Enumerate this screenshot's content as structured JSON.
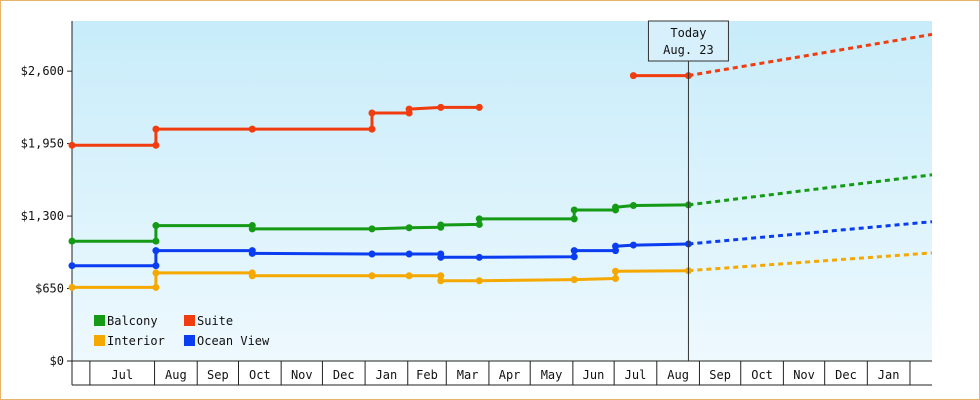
{
  "chart_data": {
    "type": "line",
    "y_ticks": [
      {
        "value": 0,
        "label": "$0"
      },
      {
        "value": 650,
        "label": "$650"
      },
      {
        "value": 1300,
        "label": "$1,300"
      },
      {
        "value": 1950,
        "label": "$1,950"
      },
      {
        "value": 2600,
        "label": "$2,600"
      }
    ],
    "ylim": [
      0,
      3050
    ],
    "xlim": [
      "2022-06-01",
      "2024-02-16"
    ],
    "month_labels": [
      {
        "label": "Jul",
        "start": "2022-06-14",
        "end": "2022-07-31"
      },
      {
        "label": "Aug",
        "start": "2022-07-31",
        "end": "2022-08-31"
      },
      {
        "label": "Sep",
        "start": "2022-08-31",
        "end": "2022-09-30"
      },
      {
        "label": "Oct",
        "start": "2022-09-30",
        "end": "2022-10-31"
      },
      {
        "label": "Nov",
        "start": "2022-10-31",
        "end": "2022-11-30"
      },
      {
        "label": "Dec",
        "start": "2022-11-30",
        "end": "2022-12-31"
      },
      {
        "label": "Jan",
        "start": "2022-12-31",
        "end": "2023-01-31"
      },
      {
        "label": "Feb",
        "start": "2023-01-31",
        "end": "2023-02-28"
      },
      {
        "label": "Mar",
        "start": "2023-02-28",
        "end": "2023-03-31"
      },
      {
        "label": "Apr",
        "start": "2023-03-31",
        "end": "2023-04-30"
      },
      {
        "label": "May",
        "start": "2023-04-30",
        "end": "2023-05-31"
      },
      {
        "label": "Jun",
        "start": "2023-05-31",
        "end": "2023-06-30"
      },
      {
        "label": "Jul",
        "start": "2023-06-30",
        "end": "2023-07-31"
      },
      {
        "label": "Aug",
        "start": "2023-07-31",
        "end": "2023-08-31"
      },
      {
        "label": "Sep",
        "start": "2023-08-31",
        "end": "2023-09-30"
      },
      {
        "label": "Oct",
        "start": "2023-09-30",
        "end": "2023-10-31"
      },
      {
        "label": "Nov",
        "start": "2023-10-31",
        "end": "2023-11-30"
      },
      {
        "label": "Dec",
        "start": "2023-11-30",
        "end": "2023-12-31"
      },
      {
        "label": "Jan",
        "start": "2023-12-31",
        "end": "2024-01-31"
      }
    ],
    "today": {
      "date": "2023-08-23",
      "label_line1": "Today",
      "label_line2": "Aug. 23"
    },
    "legend_placement": "bottom-left",
    "grid": false,
    "series": [
      {
        "name": "Balcony",
        "color": "#159a15",
        "points": [
          [
            "2022-06-01",
            1075
          ],
          [
            "2022-08-01",
            1075
          ],
          [
            "2022-08-01",
            1215
          ],
          [
            "2022-10-10",
            1215
          ],
          [
            "2022-10-10",
            1185
          ],
          [
            "2023-01-05",
            1185
          ],
          [
            "2023-02-01",
            1195
          ],
          [
            "2023-02-24",
            1200
          ],
          [
            "2023-02-24",
            1220
          ],
          [
            "2023-03-24",
            1225
          ],
          [
            "2023-03-24",
            1275
          ],
          [
            "2023-06-01",
            1275
          ],
          [
            "2023-06-01",
            1355
          ],
          [
            "2023-07-01",
            1355
          ],
          [
            "2023-07-01",
            1380
          ],
          [
            "2023-07-14",
            1395
          ],
          [
            "2023-08-23",
            1400
          ]
        ],
        "forecast": [
          [
            "2023-08-23",
            1400
          ],
          [
            "2024-02-16",
            1670
          ]
        ]
      },
      {
        "name": "Suite",
        "color": "#f03c0f",
        "points": [
          [
            "2022-06-01",
            1935
          ],
          [
            "2022-08-01",
            1935
          ],
          [
            "2022-08-01",
            2080
          ],
          [
            "2022-10-10",
            2080
          ],
          [
            "2023-01-05",
            2080
          ],
          [
            "2023-01-05",
            2225
          ],
          [
            "2023-02-01",
            2225
          ],
          [
            "2023-02-01",
            2260
          ],
          [
            "2023-02-24",
            2275
          ],
          [
            "2023-03-24",
            2275
          ]
        ],
        "forecast_points": [
          [
            "2023-07-14",
            2560
          ],
          [
            "2023-08-23",
            2560
          ]
        ],
        "forecast": [
          [
            "2023-08-23",
            2560
          ],
          [
            "2024-02-16",
            2930
          ]
        ]
      },
      {
        "name": "Interior",
        "color": "#f5a800",
        "points": [
          [
            "2022-06-01",
            660
          ],
          [
            "2022-08-01",
            660
          ],
          [
            "2022-08-01",
            790
          ],
          [
            "2022-10-10",
            790
          ],
          [
            "2022-10-10",
            765
          ],
          [
            "2023-01-05",
            765
          ],
          [
            "2023-02-01",
            765
          ],
          [
            "2023-02-24",
            765
          ],
          [
            "2023-02-24",
            720
          ],
          [
            "2023-03-24",
            720
          ],
          [
            "2023-06-01",
            730
          ],
          [
            "2023-07-01",
            740
          ],
          [
            "2023-07-01",
            805
          ],
          [
            "2023-08-23",
            810
          ]
        ],
        "forecast": [
          [
            "2023-08-23",
            810
          ],
          [
            "2024-02-16",
            970
          ]
        ]
      },
      {
        "name": "Ocean View",
        "color": "#0a3cf0",
        "points": [
          [
            "2022-06-01",
            855
          ],
          [
            "2022-08-01",
            855
          ],
          [
            "2022-08-01",
            990
          ],
          [
            "2022-10-10",
            990
          ],
          [
            "2022-10-10",
            965
          ],
          [
            "2023-01-05",
            960
          ],
          [
            "2023-02-01",
            960
          ],
          [
            "2023-02-24",
            960
          ],
          [
            "2023-02-24",
            930
          ],
          [
            "2023-03-24",
            930
          ],
          [
            "2023-06-01",
            935
          ],
          [
            "2023-06-01",
            990
          ],
          [
            "2023-07-01",
            990
          ],
          [
            "2023-07-01",
            1030
          ],
          [
            "2023-07-14",
            1040
          ],
          [
            "2023-08-23",
            1050
          ]
        ],
        "forecast": [
          [
            "2023-08-23",
            1050
          ],
          [
            "2024-02-16",
            1250
          ]
        ]
      }
    ],
    "legend": [
      {
        "name": "Balcony",
        "color": "#159a15"
      },
      {
        "name": "Suite",
        "color": "#f03c0f"
      },
      {
        "name": "Interior",
        "color": "#f5a800"
      },
      {
        "name": "Ocean View",
        "color": "#0a3cf0"
      }
    ]
  }
}
